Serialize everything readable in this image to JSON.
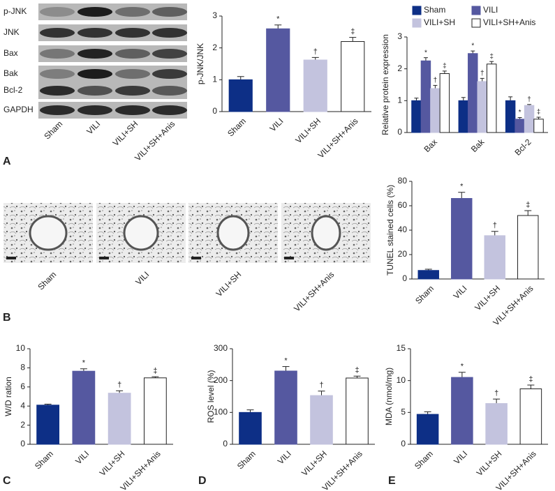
{
  "panels": [
    "A",
    "B",
    "C",
    "D",
    "E"
  ],
  "blot": {
    "bands": [
      "p-JNK",
      "JNK",
      "Bax",
      "Bak",
      "Bcl-2",
      "GAPDH"
    ],
    "lanes": [
      "Sham",
      "VILI",
      "VILI+SH",
      "VILI+SH+Anis"
    ]
  },
  "micrographs": {
    "labels": [
      "Sham",
      "VILI",
      "VILI+SH",
      "VILI+SH+Anis"
    ]
  },
  "chart_data": [
    {
      "type": "bar",
      "ylabel": "p-JNK/JNK",
      "categories": [
        "Sham",
        "VILI",
        "VILI+SH",
        "VILI+SH+Anis"
      ],
      "values": [
        1.0,
        2.6,
        1.62,
        2.2
      ],
      "errors": [
        0.1,
        0.12,
        0.08,
        0.13
      ],
      "colors": [
        "#0d2f86",
        "#5558a0",
        "#c3c3de",
        "#ffffff"
      ],
      "markers": [
        null,
        "*",
        "†",
        "‡"
      ],
      "ylim": [
        0,
        3
      ],
      "yticks": [
        0,
        1,
        2,
        3
      ]
    },
    {
      "type": "grouped_bar",
      "ylabel": "Relative protein expression",
      "categories": [
        "Bax",
        "Bak",
        "Bcl-2"
      ],
      "series": [
        {
          "name": "Sham",
          "color": "#0d2f86",
          "values": [
            1.0,
            1.0,
            1.0
          ],
          "errors": [
            0.08,
            0.1,
            0.12
          ]
        },
        {
          "name": "VILI",
          "color": "#5558a0",
          "values": [
            2.25,
            2.48,
            0.42
          ],
          "errors": [
            0.1,
            0.08,
            0.05
          ],
          "markers": [
            "*",
            "*",
            "*"
          ]
        },
        {
          "name": "VILI+SH",
          "color": "#c3c3de",
          "values": [
            1.38,
            1.6,
            0.85
          ],
          "errors": [
            0.1,
            0.1,
            0.03
          ],
          "markers": [
            "†",
            "†",
            "†"
          ]
        },
        {
          "name": "VILI+SH+Anis",
          "color": "#ffffff",
          "values": [
            1.85,
            2.15,
            0.42
          ],
          "errors": [
            0.08,
            0.08,
            0.06
          ],
          "markers": [
            "‡",
            "‡",
            "‡"
          ]
        }
      ],
      "ylim": [
        0,
        3
      ],
      "yticks": [
        0,
        1,
        2,
        3
      ],
      "legend": "top"
    },
    {
      "type": "bar",
      "ylabel": "TUNEL stained cells (%)",
      "categories": [
        "Sham",
        "VILI",
        "VILI+SH",
        "VILI+SH+Anis"
      ],
      "values": [
        7,
        66,
        35.5,
        52
      ],
      "errors": [
        1,
        5,
        3.5,
        4
      ],
      "colors": [
        "#0d2f86",
        "#5558a0",
        "#c3c3de",
        "#ffffff"
      ],
      "markers": [
        null,
        "*",
        "†",
        "‡"
      ],
      "ylim": [
        0,
        80
      ],
      "yticks": [
        0,
        20,
        40,
        60,
        80
      ]
    },
    {
      "type": "bar",
      "ylabel": "W/D ration",
      "categories": [
        "Sham",
        "VILI",
        "VILI+SH",
        "VILI+SH+Anis"
      ],
      "values": [
        4.1,
        7.65,
        5.35,
        6.95
      ],
      "errors": [
        0.1,
        0.25,
        0.25,
        0.12
      ],
      "colors": [
        "#0d2f86",
        "#5558a0",
        "#c3c3de",
        "#ffffff"
      ],
      "markers": [
        null,
        "*",
        "†",
        "‡"
      ],
      "ylim": [
        0,
        10
      ],
      "yticks": [
        0,
        2,
        4,
        6,
        8,
        10
      ]
    },
    {
      "type": "bar",
      "ylabel": "ROS level (%)",
      "categories": [
        "Sham",
        "VILI",
        "VILI+SH",
        "VILI+SH+Anis"
      ],
      "values": [
        100,
        230,
        153,
        208
      ],
      "errors": [
        8,
        14,
        14,
        6
      ],
      "colors": [
        "#0d2f86",
        "#5558a0",
        "#c3c3de",
        "#ffffff"
      ],
      "markers": [
        null,
        "*",
        "†",
        "‡"
      ],
      "ylim": [
        0,
        300
      ],
      "yticks": [
        0,
        100,
        200,
        300
      ]
    },
    {
      "type": "bar",
      "ylabel": "MDA (nmol/mg)",
      "categories": [
        "Sham",
        "VILI",
        "VILI+SH",
        "VILI+SH+Anis"
      ],
      "values": [
        4.7,
        10.5,
        6.4,
        8.7
      ],
      "errors": [
        0.4,
        0.8,
        0.7,
        0.6
      ],
      "colors": [
        "#0d2f86",
        "#5558a0",
        "#c3c3de",
        "#ffffff"
      ],
      "markers": [
        null,
        "*",
        "†",
        "‡"
      ],
      "ylim": [
        0,
        15
      ],
      "yticks": [
        0,
        5,
        10,
        15
      ]
    }
  ]
}
